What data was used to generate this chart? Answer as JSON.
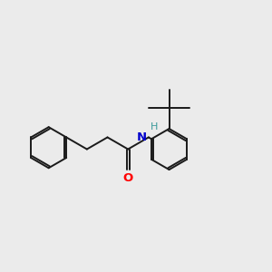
{
  "background_color": "#ebebeb",
  "bond_color": "#1a1a1a",
  "bond_width": 1.4,
  "atom_colors": {
    "O": "#ff0000",
    "N": "#0000cc",
    "H": "#3a9a9a",
    "C": "#1a1a1a"
  },
  "figsize": [
    3.0,
    3.0
  ],
  "dpi": 100
}
